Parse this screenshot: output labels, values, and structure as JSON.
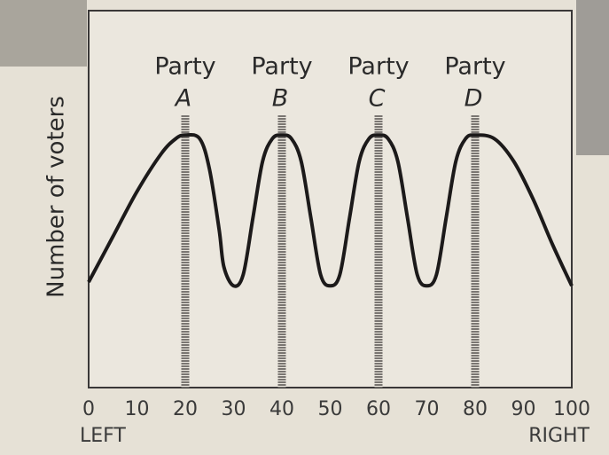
{
  "chart_data": {
    "type": "line",
    "y_label": "Number of voters",
    "x_end_labels": [
      "LEFT",
      "RIGHT"
    ],
    "x": [
      0,
      5,
      10,
      15,
      18,
      20,
      23,
      25,
      27,
      28,
      30,
      32,
      34,
      36,
      38,
      40,
      42,
      44,
      46,
      48,
      50,
      52,
      54,
      56,
      58,
      60,
      62,
      64,
      66,
      68,
      70,
      72,
      74,
      76,
      78,
      80,
      84,
      88,
      92,
      96,
      100
    ],
    "values": [
      28,
      40,
      52,
      62,
      66,
      67,
      66,
      58,
      42,
      32,
      27,
      30,
      45,
      60,
      66,
      67,
      66,
      60,
      45,
      30,
      27,
      30,
      45,
      60,
      66,
      67,
      66,
      60,
      45,
      30,
      27,
      30,
      45,
      60,
      66,
      67,
      66,
      60,
      50,
      38,
      27
    ],
    "color": "#1c1a1a",
    "xlim": [
      0,
      100
    ],
    "ylim": [
      0,
      100
    ],
    "xticks": [
      0,
      10,
      20,
      30,
      40,
      50,
      60,
      70,
      80,
      90,
      100
    ],
    "parties": [
      {
        "lines": [
          "Party",
          "A"
        ],
        "x": 20
      },
      {
        "lines": [
          "Party",
          "B"
        ],
        "x": 40
      },
      {
        "lines": [
          "Party",
          "C"
        ],
        "x": 60
      },
      {
        "lines": [
          "Party",
          "D"
        ],
        "x": 80
      }
    ],
    "party_color": "#7a7672",
    "grid": false
  }
}
